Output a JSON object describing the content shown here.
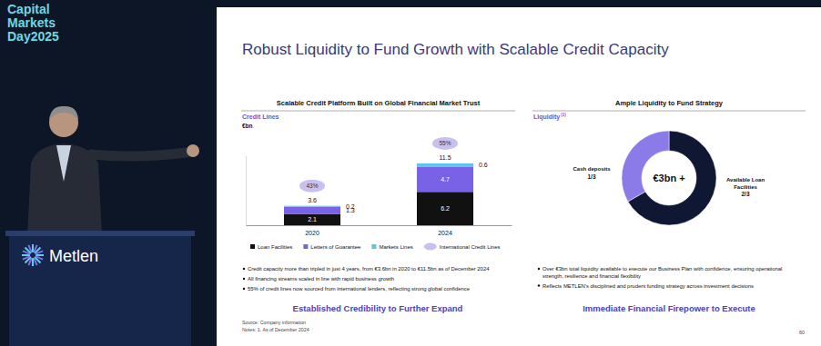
{
  "page": {
    "event": [
      "Capital",
      "Markets",
      "Day2025"
    ],
    "podium_logo": "Metlen",
    "title": "Robust Liquidity to Fund Growth with Scalable Credit Capacity",
    "source": "Source: Company information",
    "notes": "Notes: 1. As of December 2024",
    "page_number": "60"
  },
  "chart_data": [
    {
      "type": "bar",
      "stacked": true,
      "title": "Scalable Credit Platform Built on Global Financial Market Trust",
      "subtitle": "Credit Lines",
      "y_label": "€bn",
      "categories": [
        "2020",
        "2024"
      ],
      "series": [
        {
          "name": "Loan Facilities",
          "color": "#111111",
          "values": [
            2.1,
            6.2
          ]
        },
        {
          "name": "Letters of Guarantee",
          "color": "#7a62e6",
          "values": [
            1.3,
            4.7
          ]
        },
        {
          "name": "Markets Lines",
          "color": "#5ec4e8",
          "values": [
            0.2,
            0.6
          ]
        }
      ],
      "totals": [
        3.6,
        11.5
      ],
      "international_credit_lines": {
        "name": "International Credit Lines",
        "color": "#c9c0f2",
        "values": [
          43,
          55
        ],
        "value_labels": [
          "43%",
          "55%"
        ]
      },
      "ylim": [
        0,
        13
      ],
      "data_labels": true,
      "tick_labels": "x",
      "legend": "bottom",
      "bullets": [
        "Credit capacity more than tripled in just 4 years, from €3.6bn in 2020 to €11.5bn as of December 2024",
        "All financing streams scaled in line with rapid business growth",
        "55% of credit lines now sourced from international lenders, reflecting strong global confidence"
      ],
      "footer": "Established Credibility to Further Expand"
    },
    {
      "type": "donut",
      "title": "Ample Liquidity to Fund Strategy",
      "subtitle": "Liquidity",
      "subtitle_note": "(1)",
      "center_label": "€3bn +",
      "categories": [
        "Available Loan Facilities",
        "Cash deposits"
      ],
      "values": [
        0.667,
        0.333
      ],
      "value_labels": [
        "2/3",
        "1/3"
      ],
      "colors": [
        "#0f1733",
        "#8a7be8"
      ],
      "data_labels": true,
      "bullets": [
        "Over €3bn total liquidity available to execute our Business Plan with confidence, ensuring operational strength, resilience and financial flexibility",
        "Reflects METLEN's disciplined and prudent funding strategy across investment decisions"
      ],
      "footer": "Immediate Financial Firepower to Execute"
    }
  ]
}
